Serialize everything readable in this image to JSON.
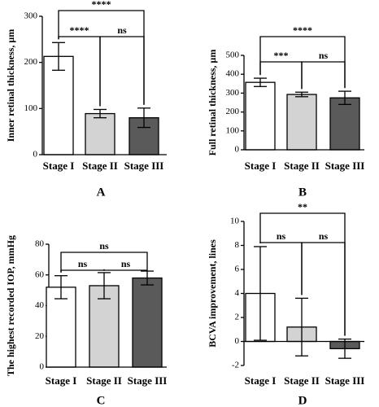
{
  "chart_data": [
    {
      "type": "bar",
      "panel": "A",
      "y_label": "Inner retinal thickness, µm",
      "categories": [
        "Stage I",
        "Stage II",
        "Stage III"
      ],
      "series": [
        {
          "values": [
            213,
            89,
            80
          ],
          "errors": [
            30,
            9,
            21
          ],
          "colors": [
            "#ffffff",
            "#d3d3d3",
            "#5a5a5a"
          ]
        }
      ],
      "ylim": [
        0,
        300
      ],
      "yticks": [
        0,
        100,
        200,
        300
      ],
      "annotations": [
        {
          "pair": [
            "Stage I",
            "Stage II"
          ],
          "text": "****"
        },
        {
          "pair": [
            "Stage II",
            "Stage III"
          ],
          "text": "ns"
        },
        {
          "pair": [
            "Stage I",
            "Stage III"
          ],
          "text": "****"
        }
      ]
    },
    {
      "type": "bar",
      "panel": "B",
      "y_label": "Full retinal thickness, µm",
      "categories": [
        "Stage I",
        "Stage II",
        "Stage III"
      ],
      "series": [
        {
          "values": [
            357,
            293,
            275
          ],
          "errors": [
            22,
            12,
            35
          ],
          "colors": [
            "#ffffff",
            "#d3d3d3",
            "#5a5a5a"
          ]
        }
      ],
      "ylim": [
        0,
        500
      ],
      "yticks": [
        0,
        100,
        200,
        300,
        400,
        500
      ],
      "annotations": [
        {
          "pair": [
            "Stage I",
            "Stage II"
          ],
          "text": "***"
        },
        {
          "pair": [
            "Stage II",
            "Stage III"
          ],
          "text": "ns"
        },
        {
          "pair": [
            "Stage I",
            "Stage III"
          ],
          "text": "****"
        }
      ]
    },
    {
      "type": "bar",
      "panel": "C",
      "y_label": "The highest recorded IOP, mmHg",
      "categories": [
        "Stage I",
        "Stage II",
        "Stage III"
      ],
      "series": [
        {
          "values": [
            52,
            53,
            58
          ],
          "errors": [
            7.5,
            8.5,
            4.5
          ],
          "colors": [
            "#ffffff",
            "#d3d3d3",
            "#5a5a5a"
          ]
        }
      ],
      "ylim": [
        0,
        80
      ],
      "yticks": [
        0,
        20,
        40,
        60,
        80
      ],
      "annotations": [
        {
          "pair": [
            "Stage I",
            "Stage II"
          ],
          "text": "ns"
        },
        {
          "pair": [
            "Stage II",
            "Stage III"
          ],
          "text": "ns"
        },
        {
          "pair": [
            "Stage I",
            "Stage III"
          ],
          "text": "ns"
        }
      ]
    },
    {
      "type": "bar",
      "panel": "D",
      "y_label": "BCVA improvement, lines",
      "categories": [
        "Stage I",
        "Stage II",
        "Stage III"
      ],
      "series": [
        {
          "values": [
            4.0,
            1.2,
            -0.6
          ],
          "errors": [
            3.9,
            2.4,
            0.8
          ],
          "colors": [
            "#ffffff",
            "#d3d3d3",
            "#5a5a5a"
          ]
        }
      ],
      "ylim": [
        -2,
        10
      ],
      "yticks": [
        -2,
        0,
        2,
        4,
        6,
        8,
        10
      ],
      "annotations": [
        {
          "pair": [
            "Stage I",
            "Stage II"
          ],
          "text": "ns"
        },
        {
          "pair": [
            "Stage II",
            "Stage III"
          ],
          "text": "ns"
        },
        {
          "pair": [
            "Stage I",
            "Stage III"
          ],
          "text": "**"
        }
      ]
    }
  ]
}
